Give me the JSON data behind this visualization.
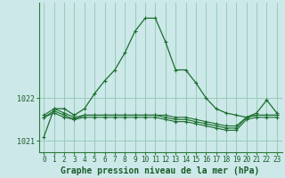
{
  "xlabel": "Graphe pression niveau de la mer (hPa)",
  "background_color": "#cce8e8",
  "grid_color": "#99ccbb",
  "line_color": "#1a6e2e",
  "hours": [
    0,
    1,
    2,
    3,
    4,
    5,
    6,
    7,
    8,
    9,
    10,
    11,
    12,
    13,
    14,
    15,
    16,
    17,
    18,
    19,
    20,
    21,
    22,
    23
  ],
  "line1": [
    1021.1,
    1021.75,
    1021.75,
    1021.6,
    1021.75,
    1022.1,
    1022.4,
    1022.65,
    1023.05,
    1023.55,
    1023.85,
    1023.85,
    1023.3,
    1022.65,
    1022.65,
    1022.35,
    1022.0,
    1021.75,
    1021.65,
    1021.6,
    1021.55,
    1021.65,
    1021.95,
    1021.65
  ],
  "line2": [
    1021.6,
    1021.75,
    1021.65,
    1021.55,
    1021.6,
    1021.6,
    1021.6,
    1021.6,
    1021.6,
    1021.6,
    1021.6,
    1021.6,
    1021.6,
    1021.55,
    1021.55,
    1021.5,
    1021.45,
    1021.4,
    1021.35,
    1021.35,
    1021.55,
    1021.6,
    1021.6,
    1021.6
  ],
  "line3": [
    1021.55,
    1021.7,
    1021.6,
    1021.5,
    1021.6,
    1021.6,
    1021.6,
    1021.6,
    1021.6,
    1021.6,
    1021.6,
    1021.6,
    1021.55,
    1021.5,
    1021.5,
    1021.45,
    1021.4,
    1021.35,
    1021.3,
    1021.3,
    1021.55,
    1021.6,
    1021.6,
    1021.6
  ],
  "line4": [
    1021.55,
    1021.65,
    1021.55,
    1021.5,
    1021.55,
    1021.55,
    1021.55,
    1021.55,
    1021.55,
    1021.55,
    1021.55,
    1021.55,
    1021.5,
    1021.45,
    1021.45,
    1021.4,
    1021.35,
    1021.3,
    1021.25,
    1021.25,
    1021.5,
    1021.55,
    1021.55,
    1021.55
  ],
  "ylim_min": 1020.75,
  "ylim_max": 1024.2,
  "ytick1": 1021,
  "ytick2": 1022,
  "title_fontsize": 7.0,
  "tick_fontsize": 5.5
}
